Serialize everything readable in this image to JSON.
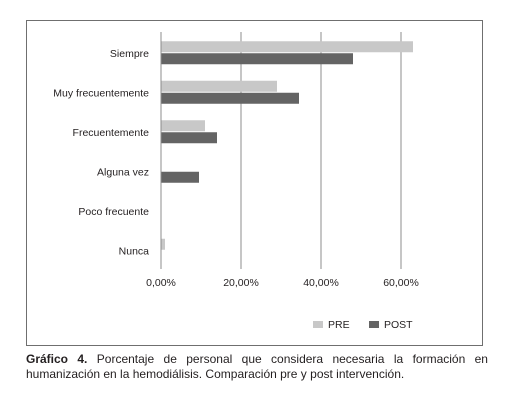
{
  "chart_data": {
    "type": "bar",
    "orientation": "horizontal",
    "categories": [
      "Siempre",
      "Muy frecuentemente",
      "Frecuentemente",
      "Alguna vez",
      "Poco frecuente",
      "Nunca"
    ],
    "series": [
      {
        "name": "PRE",
        "color": "#c8c8c8",
        "values": [
          63.0,
          29.0,
          11.0,
          0.0,
          0.0,
          1.0
        ]
      },
      {
        "name": "POST",
        "color": "#646464",
        "values": [
          48.0,
          34.5,
          14.0,
          9.5,
          0.0,
          0.0
        ]
      }
    ],
    "xlim": [
      0,
      60
    ],
    "xticks": [
      0,
      20,
      40,
      60
    ],
    "xtick_labels": [
      "0,00%",
      "20,00%",
      "40,00%",
      "60,00%"
    ],
    "grid": true,
    "legend_position": "bottom"
  },
  "caption": {
    "number": "Gráfico 4.",
    "text": "Porcentaje de personal que considera necesaria la formación en humanización en la hemodiálisis. Comparación pre y post intervención."
  }
}
